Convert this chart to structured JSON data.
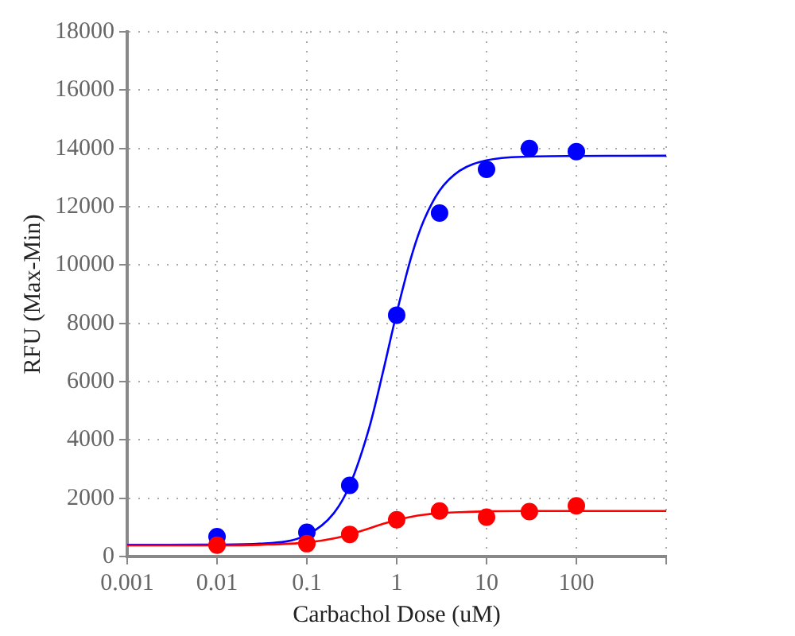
{
  "chart_data": {
    "type": "scatter",
    "xlabel": "Carbachol Dose (uM)",
    "ylabel": "RFU (Max-Min)",
    "log": "x",
    "grid": true,
    "legend": false,
    "marker": "circle",
    "xlim": [
      0.001,
      1000
    ],
    "xticks": [
      0.001,
      0.01,
      0.1,
      1,
      10,
      100,
      {
        "value": 1000,
        "label": null
      }
    ],
    "ylim": [
      0,
      18000
    ],
    "yticks": [
      0,
      2000,
      4000,
      6000,
      8000,
      10000,
      12000,
      14000,
      16000,
      18000
    ],
    "series": [
      {
        "type": "line",
        "marker": "none",
        "color": "#0000ff",
        "x": [
          0.001,
          0.01,
          0.03,
          0.1,
          0.2,
          0.3,
          0.5,
          0.7,
          1,
          1.5,
          2,
          3,
          5,
          10,
          30,
          100,
          1000
        ],
        "values": [
          400,
          410,
          440,
          740,
          1490,
          2440,
          4470,
          6300,
          8360,
          10420,
          11520,
          12550,
          13230,
          13590,
          13720,
          13740,
          13750
        ]
      },
      {
        "type": "line",
        "marker": "none",
        "color": "#ff0000",
        "x": [
          0.001,
          0.01,
          0.03,
          0.1,
          0.2,
          0.3,
          0.5,
          0.7,
          1,
          1.5,
          2,
          3,
          5,
          10,
          30,
          100,
          1000
        ],
        "values": [
          380,
          380,
          400,
          480,
          620,
          760,
          970,
          1120,
          1250,
          1370,
          1430,
          1490,
          1520,
          1550,
          1560,
          1560,
          1560
        ]
      },
      {
        "type": "scatter",
        "color": "#0000ff",
        "x": [
          0.01,
          0.1,
          0.3,
          1,
          3,
          10,
          30,
          100
        ],
        "values": [
          680,
          830,
          2440,
          8280,
          11780,
          13280,
          14000,
          13890
        ]
      },
      {
        "type": "scatter",
        "color": "#ff0000",
        "x": [
          0.01,
          0.1,
          0.3,
          1,
          3,
          10,
          30,
          100
        ],
        "values": [
          390,
          440,
          760,
          1260,
          1560,
          1350,
          1540,
          1740
        ]
      }
    ]
  }
}
